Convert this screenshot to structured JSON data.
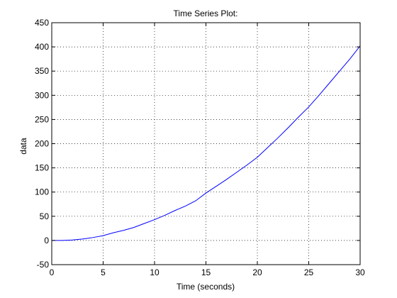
{
  "chart_data": {
    "type": "line",
    "title": "Time Series Plot:",
    "xlabel": "Time (seconds)",
    "ylabel": "data",
    "xlim": [
      0,
      30
    ],
    "ylim": [
      -50,
      450
    ],
    "xticks": [
      0,
      5,
      10,
      15,
      20,
      25,
      30
    ],
    "yticks": [
      -50,
      0,
      50,
      100,
      150,
      200,
      250,
      300,
      350,
      400,
      450
    ],
    "grid": true,
    "grid_style": "dotted",
    "legend": "none",
    "series": [
      {
        "color": "#0000ff",
        "x": [
          0,
          1,
          2,
          3,
          4,
          5,
          6,
          7,
          8,
          9,
          10,
          11,
          12,
          13,
          14,
          15,
          16,
          17,
          18,
          19,
          20,
          21,
          22,
          23,
          24,
          25,
          26,
          27,
          28,
          29,
          30
        ],
        "y": [
          0,
          0,
          1,
          3,
          6,
          10,
          16,
          21,
          27,
          35,
          43,
          52,
          62,
          71,
          82,
          98,
          112,
          126,
          141,
          156,
          172,
          192,
          212,
          233,
          255,
          276,
          300,
          325,
          350,
          375,
          402
        ]
      }
    ]
  }
}
